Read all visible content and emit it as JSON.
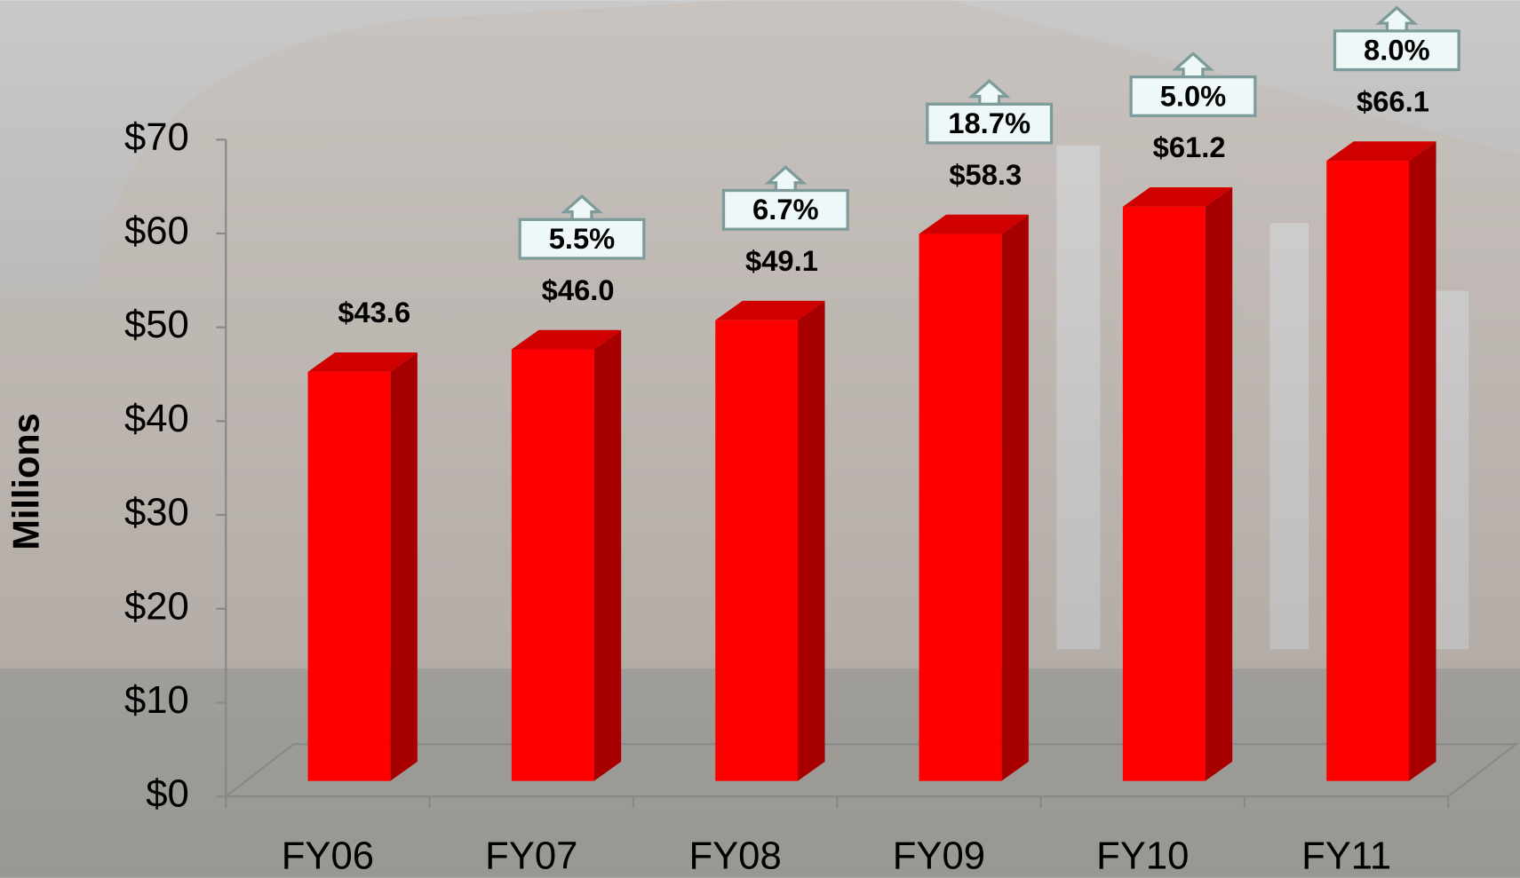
{
  "chart_data": {
    "type": "bar3d",
    "y_axis_label": "Millions",
    "categories": [
      "FY06",
      "FY07",
      "FY08",
      "FY09",
      "FY10",
      "FY11"
    ],
    "values": [
      43.6,
      46.0,
      49.1,
      58.3,
      61.2,
      66.1
    ],
    "value_labels": [
      "$43.6",
      "$46.0",
      "$49.1",
      "$58.3",
      "$61.2",
      "$66.1"
    ],
    "color": "#ff0000",
    "growth": {
      "values": [
        null,
        5.5,
        6.7,
        18.7,
        5.0,
        8.0
      ],
      "value_labels": [
        null,
        "5.5%",
        "6.7%",
        "18.7%",
        "5.0%",
        "8.0%"
      ]
    },
    "ylim": [
      0,
      70
    ],
    "yticks": [
      {
        "value": 0,
        "label": "$0"
      },
      {
        "value": 10,
        "label": "$10"
      },
      {
        "value": 20,
        "label": "$20"
      },
      {
        "value": 30,
        "label": "$30"
      },
      {
        "value": 40,
        "label": "$40"
      },
      {
        "value": 50,
        "label": "$50"
      },
      {
        "value": 60,
        "label": "$60"
      },
      {
        "value": 70,
        "label": "$70"
      }
    ]
  }
}
